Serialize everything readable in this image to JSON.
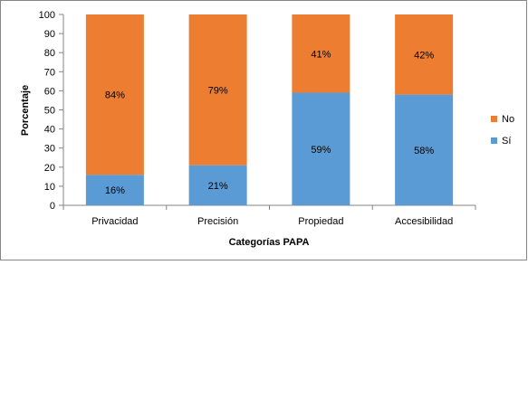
{
  "chart_data": {
    "type": "bar",
    "stacked": true,
    "categories": [
      "Privacidad",
      "Precisión",
      "Propiedad",
      "Accesibilidad"
    ],
    "series": [
      {
        "name": "Sí",
        "values": [
          16,
          21,
          59,
          58
        ],
        "labels": [
          "16%",
          "21%",
          "59%",
          "58%"
        ],
        "color": "#5b9bd5"
      },
      {
        "name": "No",
        "values": [
          84,
          79,
          41,
          42
        ],
        "labels": [
          "84%",
          "79%",
          "41%",
          "42%"
        ],
        "color": "#ed7d31"
      }
    ],
    "xlabel": "Categorías PAPA",
    "ylabel": "Porcentaje",
    "ylim": [
      0,
      100
    ],
    "yticks": [
      0,
      10,
      20,
      30,
      40,
      50,
      60,
      70,
      80,
      90,
      100
    ],
    "grid": false,
    "legend": {
      "position": "right",
      "entries": [
        "No",
        "Sí"
      ]
    }
  }
}
